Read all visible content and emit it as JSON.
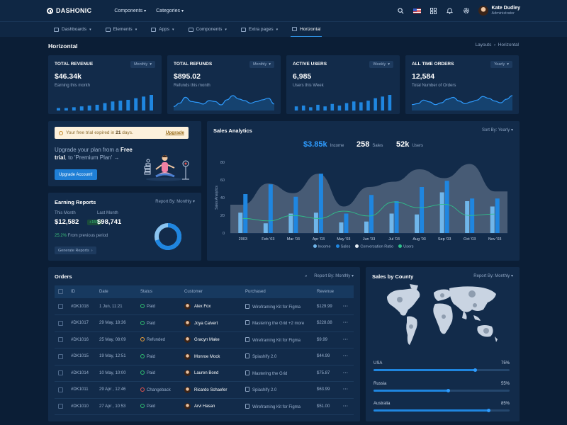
{
  "brand": {
    "name": "DASHONIC"
  },
  "topmenu": [
    {
      "label": "Components"
    },
    {
      "label": "Categories"
    }
  ],
  "user": {
    "name": "Kate Dudley",
    "role": "Administrator"
  },
  "nav": [
    {
      "label": "Dashboards",
      "dropdown": true
    },
    {
      "label": "Elements",
      "dropdown": true
    },
    {
      "label": "Apps",
      "dropdown": true
    },
    {
      "label": "Components",
      "dropdown": true
    },
    {
      "label": "Extra pages",
      "dropdown": true
    },
    {
      "label": "Horizontal",
      "active": true
    }
  ],
  "page": {
    "title": "Horizontal",
    "breadcrumb": [
      "Layouts",
      "Horizontal"
    ]
  },
  "stats": [
    {
      "title": "Total Revenue",
      "period": "Monthly",
      "value": "$46.34k",
      "sub": "Earning this month",
      "chart": "bar",
      "bars": [
        3,
        3,
        4,
        5,
        6,
        7,
        9,
        11,
        12,
        13,
        15,
        17,
        19
      ]
    },
    {
      "title": "Total Refunds",
      "period": "Monthly",
      "value": "$895.02",
      "sub": "Refunds this month",
      "chart": "area",
      "points": [
        3,
        7,
        14,
        9,
        8,
        6,
        10,
        9,
        5,
        11,
        16,
        12,
        10,
        7,
        9,
        11,
        13,
        6
      ]
    },
    {
      "title": "Active Users",
      "period": "Weekly",
      "value": "6,985",
      "sub": "Users this Week",
      "chart": "bar",
      "bars": [
        5,
        6,
        4,
        7,
        5,
        8,
        6,
        9,
        11,
        10,
        12,
        15,
        17,
        19
      ]
    },
    {
      "title": "All Time Orders",
      "period": "Yearly",
      "value": "12,584",
      "sub": "Total Number of Orders",
      "chart": "area",
      "points": [
        5,
        6,
        10,
        8,
        5,
        7,
        11,
        13,
        9,
        6,
        8,
        10,
        14,
        12,
        9,
        7,
        11,
        15
      ]
    }
  ],
  "promo": {
    "banner_pre": "Your free trial expired in ",
    "banner_days": "21",
    "banner_post": " days.",
    "banner_link": "Upgrade",
    "text_pre": "Upgrade your plan from a ",
    "text_bold": "Free trial",
    "text_post": ", to 'Premium Plan' →",
    "button": "Upgrade Account!"
  },
  "earning": {
    "title": "Earning Reports",
    "report_by": "Report By: Monthly",
    "this_month_label": "This Month",
    "this_month_value": "$12,582",
    "this_month_pill": "+15%",
    "last_month_label": "Last Month",
    "last_month_value": "$98,741",
    "change": "25.2%",
    "change_text": " From previous period",
    "button": "Generate Reports",
    "donut": 0.7
  },
  "sales": {
    "title": "Sales Analytics",
    "sort": "Sort By: Yearly",
    "income": "$3.85k",
    "income_label": "Income",
    "sales_count": "258",
    "sales_label": "Sales",
    "users_count": "52k",
    "users_label": "Users"
  },
  "chart_data": {
    "type": "bar",
    "ylabel": "Sales Analytics",
    "ylim": [
      0,
      80
    ],
    "yticks": [
      0,
      20,
      40,
      60,
      80
    ],
    "categories": [
      "2003",
      "Feb '03",
      "Mar '03",
      "Apr '03",
      "May '03",
      "Jun '03",
      "Jul '03",
      "Aug '03",
      "Sep '03",
      "Oct '03",
      "Nov '03"
    ],
    "series": [
      {
        "name": "Income",
        "type": "bar",
        "color": "#70b6ea",
        "values": [
          23,
          11,
          22,
          23,
          12,
          13,
          22,
          21,
          46,
          36,
          30
        ]
      },
      {
        "name": "Sales",
        "type": "bar",
        "color": "#1f86e0",
        "values": [
          44,
          55,
          41,
          67,
          22,
          43,
          36,
          52,
          59,
          39,
          39
        ]
      },
      {
        "name": "Conversation Ratio",
        "type": "line",
        "color": "#2fbf8a",
        "values": [
          30,
          25,
          36,
          30,
          45,
          35,
          64,
          52,
          59,
          36,
          39
        ]
      },
      {
        "name": "Users",
        "type": "area",
        "color": "#8da0b6",
        "values": [
          32,
          56,
          45,
          67,
          30,
          52,
          58,
          72,
          62,
          78,
          47
        ]
      }
    ],
    "legend": "bottom-center"
  },
  "orders": {
    "title": "Orders",
    "report_by": "Report By: Monthly",
    "columns": [
      "ID",
      "Date",
      "Status",
      "Customer",
      "Purchased",
      "Revenue"
    ],
    "rows": [
      {
        "id": "#DK1018",
        "date": "1 Jun, 11:21",
        "status": "Paid",
        "customer": "Alex Fox",
        "purchased": "Wireframing Kit for Figma",
        "revenue": "$129.99"
      },
      {
        "id": "#DK1017",
        "date": "29 May, 18:36",
        "status": "Paid",
        "customer": "Joya Calvert",
        "purchased": "Mastering the Grid +2 more",
        "revenue": "$228.88"
      },
      {
        "id": "#DK1016",
        "date": "25 May, 08:09",
        "status": "Refunded",
        "customer": "Gracyn Make",
        "purchased": "Wireframing Kit for Figma",
        "revenue": "$9.99"
      },
      {
        "id": "#DK1015",
        "date": "19 May, 12:51",
        "status": "Paid",
        "customer": "Monroe Mock",
        "purchased": "Spiashify 2.0",
        "revenue": "$44.99"
      },
      {
        "id": "#DK1014",
        "date": "10 May, 10:00",
        "status": "Paid",
        "customer": "Lauren Bond",
        "purchased": "Mastering the Grid",
        "revenue": "$75.87"
      },
      {
        "id": "#DK1011",
        "date": "29 Apr , 12:46",
        "status": "Changeback",
        "customer": "Ricardo Schaefer",
        "purchased": "Spiashify 2.0",
        "revenue": "$63.99"
      },
      {
        "id": "#DK1010",
        "date": "27 Apr , 10:53",
        "status": "Paid",
        "customer": "Arvi Hasan",
        "purchased": "Wireframing Kit for Figma",
        "revenue": "$51.00"
      }
    ],
    "status_colors": {
      "Paid": "#2fbf71",
      "Refunded": "#f0a23c",
      "Changeback": "#e6534f"
    }
  },
  "county": {
    "title": "Sales by County",
    "report_by": "Report By: Monthly",
    "items": [
      {
        "name": "USA",
        "percent": "75%",
        "value": 0.75
      },
      {
        "name": "Russia",
        "percent": "55%",
        "value": 0.55
      },
      {
        "name": "Australia",
        "percent": "85%",
        "value": 0.85
      }
    ]
  },
  "colors": {
    "bg": "#0b1e36",
    "card": "#122b4a",
    "accent": "#1f86e0"
  }
}
